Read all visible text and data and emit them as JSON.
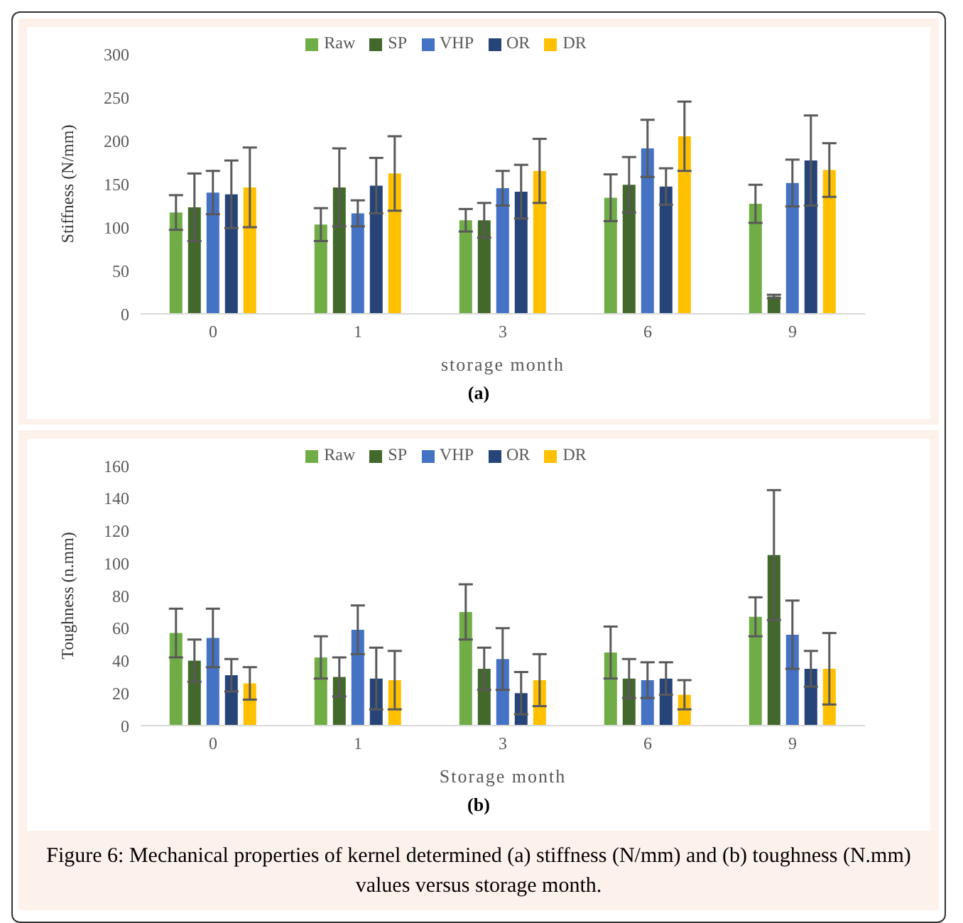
{
  "chart_data": [
    {
      "type": "bar",
      "ylabel": "Stiffness (N/mm)",
      "xlabel": "storage month",
      "categories": [
        "0",
        "1",
        "3",
        "6",
        "9"
      ],
      "ylim": [
        0,
        300
      ],
      "yticks": [
        0,
        50,
        100,
        150,
        200,
        250,
        300
      ],
      "legend": "top",
      "grid": false,
      "annotations": [
        "(a)"
      ],
      "series": [
        {
          "name": "Raw",
          "color": "#70ad47",
          "values": [
            117,
            103,
            108,
            134,
            127
          ],
          "errors": [
            20,
            19,
            13,
            27,
            22
          ]
        },
        {
          "name": "SP",
          "color": "#43682b",
          "values": [
            123,
            146,
            108,
            149,
            20
          ],
          "errors": [
            39,
            45,
            20,
            32,
            2
          ]
        },
        {
          "name": "VHP",
          "color": "#4472c4",
          "values": [
            140,
            116,
            145,
            191,
            151
          ],
          "errors": [
            25,
            15,
            20,
            33,
            27
          ]
        },
        {
          "name": "OR",
          "color": "#264478",
          "values": [
            138,
            148,
            141,
            147,
            177
          ],
          "errors": [
            39,
            32,
            31,
            21,
            52
          ]
        },
        {
          "name": "DR",
          "color": "#ffc000",
          "values": [
            146,
            162,
            165,
            205,
            166
          ],
          "errors": [
            46,
            43,
            37,
            40,
            31
          ]
        }
      ]
    },
    {
      "type": "bar",
      "ylabel": "Toughness (n.mm)",
      "xlabel": "Storage month",
      "categories": [
        "0",
        "1",
        "3",
        "6",
        "9"
      ],
      "ylim": [
        0,
        160
      ],
      "yticks": [
        0,
        20,
        40,
        60,
        80,
        100,
        120,
        140,
        160
      ],
      "legend": "top",
      "grid": false,
      "annotations": [
        "(b)",
        "Figure 6: Mechanical properties of kernel determined (a) stiffness (N/mm) and (b) toughness (N.mm) values versus storage month."
      ],
      "series": [
        {
          "name": "Raw",
          "color": "#70ad47",
          "values": [
            57,
            42,
            70,
            45,
            67
          ],
          "errors": [
            15,
            13,
            17,
            16,
            12
          ]
        },
        {
          "name": "SP",
          "color": "#43682b",
          "values": [
            40,
            30,
            35,
            29,
            105
          ],
          "errors": [
            13,
            12,
            13,
            12,
            40
          ]
        },
        {
          "name": "VHP",
          "color": "#4472c4",
          "values": [
            54,
            59,
            41,
            28,
            56
          ],
          "errors": [
            18,
            15,
            19,
            11,
            21
          ]
        },
        {
          "name": "OR",
          "color": "#264478",
          "values": [
            31,
            29,
            20,
            29,
            35
          ],
          "errors": [
            10,
            19,
            13,
            10,
            11
          ]
        },
        {
          "name": "DR",
          "color": "#ffc000",
          "values": [
            26,
            28,
            28,
            19,
            35
          ],
          "errors": [
            10,
            18,
            16,
            9,
            22
          ]
        }
      ]
    }
  ]
}
